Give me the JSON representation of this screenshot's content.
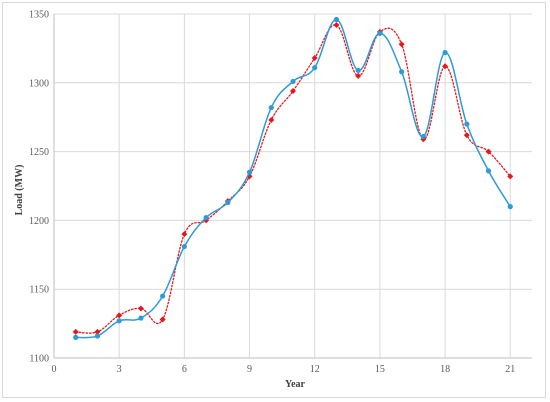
{
  "chart_data": {
    "type": "line",
    "title": "",
    "xlabel": "Year",
    "ylabel": "Load (MW)",
    "xlim": [
      0,
      22
    ],
    "ylim": [
      1100,
      1350
    ],
    "xticks": [
      0,
      3,
      6,
      9,
      12,
      15,
      18,
      21
    ],
    "yticks": [
      1100,
      1150,
      1200,
      1250,
      1300,
      1350
    ],
    "grid": true,
    "legend": "none",
    "series": [
      {
        "color": "#2e9bd6",
        "style": "solid-smooth",
        "marker": "circle",
        "x": [
          1,
          2,
          3,
          4,
          5,
          6,
          7,
          8,
          9,
          10,
          11,
          12,
          13,
          14,
          15,
          16,
          17,
          18,
          19,
          20,
          21
        ],
        "y": [
          1115,
          1116,
          1127,
          1129,
          1145,
          1181,
          1202,
          1213,
          1235,
          1282,
          1301,
          1311,
          1346,
          1309,
          1336,
          1308,
          1261,
          1322,
          1270,
          1236,
          1210
        ]
      },
      {
        "color": "#e8161b",
        "style": "dotted-smooth",
        "marker": "diamond",
        "x": [
          1,
          2,
          3,
          4,
          5,
          6,
          7,
          8,
          9,
          10,
          11,
          12,
          13,
          14,
          15,
          16,
          17,
          18,
          19,
          20,
          21
        ],
        "y": [
          1119,
          1119,
          1131,
          1136,
          1128,
          1190,
          1200,
          1214,
          1232,
          1273,
          1294,
          1318,
          1342,
          1305,
          1337,
          1328,
          1259,
          1312,
          1262,
          1250,
          1232
        ]
      }
    ]
  }
}
